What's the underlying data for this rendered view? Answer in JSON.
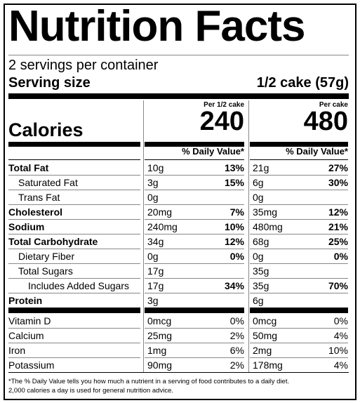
{
  "header": {
    "title": "Nutrition Facts",
    "servings": "2 servings per container",
    "serving_size_label": "Serving size",
    "serving_size_value": "1/2 cake (57g)"
  },
  "calories_label": "Calories",
  "daily_value_heading": "% Daily Value*",
  "columns": [
    {
      "heading": "Per 1/2 cake",
      "calories": "240"
    },
    {
      "heading": "Per cake",
      "calories": "480"
    }
  ],
  "nutrients": [
    {
      "name": "Total Fat",
      "bold": true,
      "indent": 0,
      "values": [
        [
          "10g",
          "13%"
        ],
        [
          "21g",
          "27%"
        ]
      ]
    },
    {
      "name": "Saturated Fat",
      "bold": false,
      "indent": 1,
      "values": [
        [
          "3g",
          "15%"
        ],
        [
          "6g",
          "30%"
        ]
      ]
    },
    {
      "name": "Trans Fat",
      "bold": false,
      "indent": 1,
      "values": [
        [
          "0g",
          null
        ],
        [
          "0g",
          null
        ]
      ]
    },
    {
      "name": "Cholesterol",
      "bold": true,
      "indent": 0,
      "values": [
        [
          "20mg",
          "7%"
        ],
        [
          "35mg",
          "12%"
        ]
      ]
    },
    {
      "name": "Sodium",
      "bold": true,
      "indent": 0,
      "values": [
        [
          "240mg",
          "10%"
        ],
        [
          "480mg",
          "21%"
        ]
      ]
    },
    {
      "name": "Total Carbohydrate",
      "bold": true,
      "indent": 0,
      "values": [
        [
          "34g",
          "12%"
        ],
        [
          "68g",
          "25%"
        ]
      ]
    },
    {
      "name": "Dietary Fiber",
      "bold": false,
      "indent": 1,
      "values": [
        [
          "0g",
          "0%"
        ],
        [
          "0g",
          "0%"
        ]
      ]
    },
    {
      "name": "Total Sugars",
      "bold": false,
      "indent": 1,
      "values": [
        [
          "17g",
          null
        ],
        [
          "35g",
          null
        ]
      ]
    },
    {
      "name": "Includes Added Sugars",
      "bold": false,
      "indent": 2,
      "values": [
        [
          "17g",
          "34%"
        ],
        [
          "35g",
          "70%"
        ]
      ]
    },
    {
      "name": "Protein",
      "bold": true,
      "indent": 0,
      "values": [
        [
          "3g",
          null
        ],
        [
          "6g",
          null
        ]
      ]
    }
  ],
  "vitamins": [
    {
      "name": "Vitamin D",
      "values": [
        [
          "0mcg",
          "0%"
        ],
        [
          "0mcg",
          "0%"
        ]
      ]
    },
    {
      "name": "Calcium",
      "values": [
        [
          "25mg",
          "2%"
        ],
        [
          "50mg",
          "4%"
        ]
      ]
    },
    {
      "name": "Iron",
      "values": [
        [
          "1mg",
          "6%"
        ],
        [
          "2mg",
          "10%"
        ]
      ]
    },
    {
      "name": "Potassium",
      "values": [
        [
          "90mg",
          "2%"
        ],
        [
          "178mg",
          "4%"
        ]
      ]
    }
  ],
  "footnote": [
    "*The % Daily Value tells you how much a nutrient in a serving of food contributes to a daily diet.",
    "2,000 calories a day is used for general nutrition advice."
  ]
}
